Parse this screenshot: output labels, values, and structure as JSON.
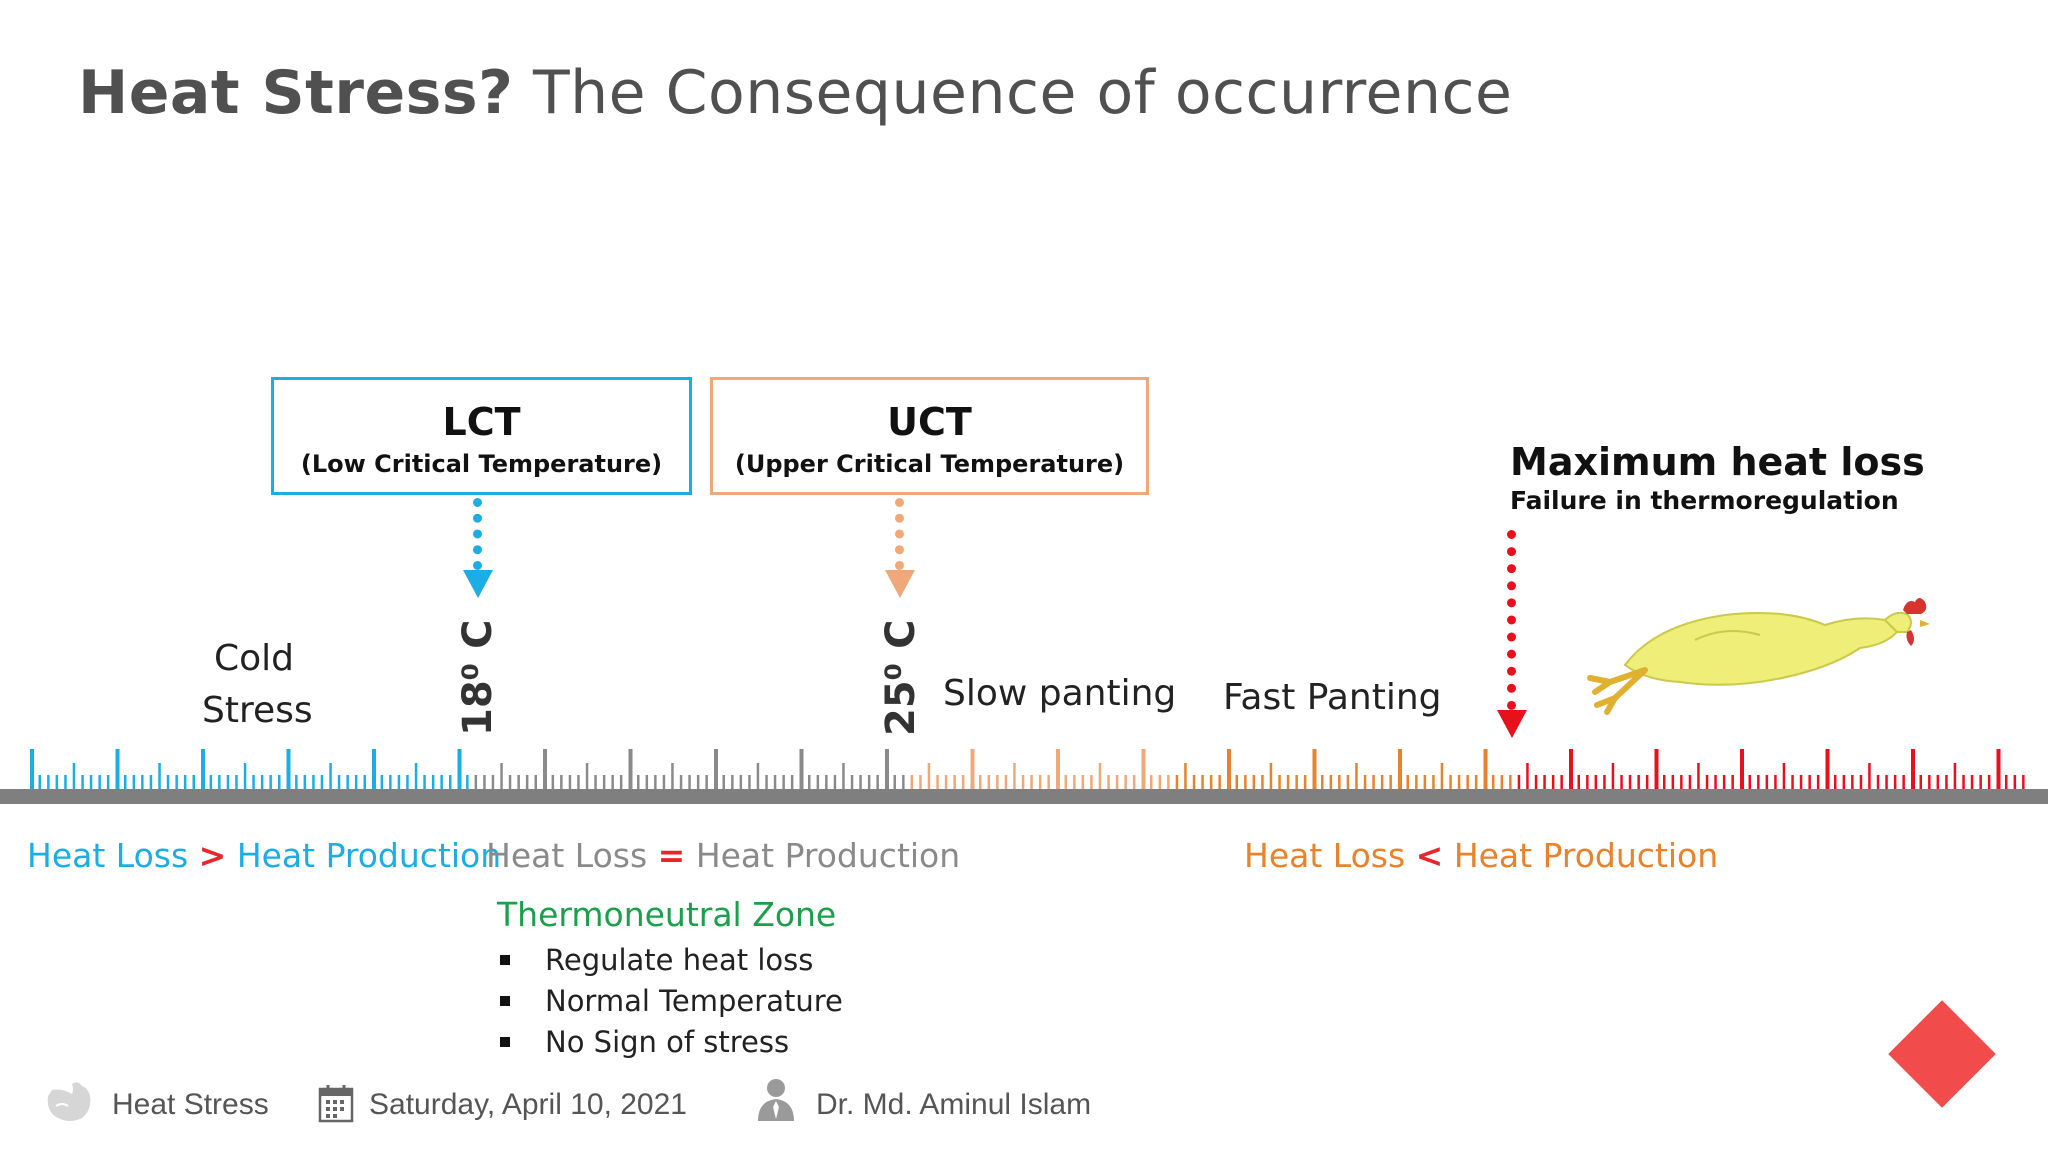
{
  "title": {
    "bold": "Heat Stress?",
    "rest": " The Consequence of occurrence"
  },
  "lct": {
    "title": "LCT",
    "subtitle": "(Low Critical Temperature)",
    "color": "#1aaee5"
  },
  "uct": {
    "title": "UCT",
    "subtitle": "(Upper Critical Temperature)",
    "color": "#f0a878"
  },
  "temps": {
    "lct_label": "18⁰ C",
    "uct_label": "25⁰ C"
  },
  "zones": {
    "cold_line1": "Cold",
    "cold_line2": "Stress",
    "slow": "Slow panting",
    "fast": "Fast Panting"
  },
  "max_heat_loss": {
    "title": "Maximum heat loss",
    "subtitle": "Failure in thermoregulation",
    "color": "#e8101a"
  },
  "balance": {
    "cold": {
      "left": "Heat Loss",
      "op": ">",
      "right": "Heat Production",
      "color": "#1aaee5"
    },
    "neutral": {
      "left": "Heat Loss",
      "op": "=",
      "right": "Heat Production",
      "color": "#8a8a8a"
    },
    "hot": {
      "left": "Heat Loss",
      "op": "<",
      "right": "Heat Production",
      "color": "#e8822b"
    }
  },
  "thermoneutral": {
    "title": "Thermoneutral Zone",
    "items": [
      "Regulate heat loss",
      "Normal Temperature",
      "No Sign of stress"
    ]
  },
  "footer": {
    "topic": "Heat Stress",
    "date": "Saturday, April 10, 2021",
    "author": "Dr. Md. Aminul Islam",
    "icons": [
      "chicken-logo-icon",
      "calendar-icon",
      "person-icon"
    ]
  },
  "scale_colors": {
    "cold": "#1aaee5",
    "neutral": "#8a8a8a",
    "slow": "#f0a878",
    "fast": "#e8822b",
    "max": "#e8101a",
    "baseline": "#7f7f7f"
  }
}
